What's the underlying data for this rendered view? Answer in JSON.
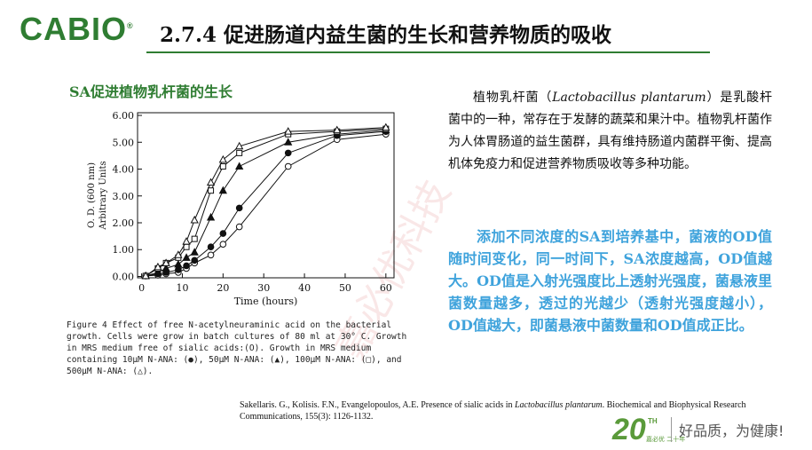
{
  "header": {
    "logo": "CABIO",
    "logo_mark": "®",
    "title": "2.7.4  促进肠道内益生菌的生长和营养物质的吸收"
  },
  "subtitle": "SA促进植物乳杆菌的生长",
  "chart_data": {
    "type": "line",
    "xlabel": "Time (hours)",
    "ylabel": [
      "O. D. (600 nm)",
      "Arbitrary Units"
    ],
    "x": [
      1,
      4,
      6,
      9,
      11,
      13,
      17,
      20,
      24,
      36,
      48,
      60
    ],
    "xlim": [
      -1,
      62
    ],
    "xticks": [
      0,
      10,
      20,
      30,
      40,
      50,
      60
    ],
    "ylim": [
      -0.05,
      6.1
    ],
    "yticks": [
      {
        "value": 0,
        "label": "0.00"
      },
      {
        "value": 1,
        "label": "1.00"
      },
      {
        "value": 2,
        "label": "2.00"
      },
      {
        "value": 3,
        "label": "3.00"
      },
      {
        "value": 4,
        "label": "4.00"
      },
      {
        "value": 5,
        "label": "5.00"
      },
      {
        "value": 6,
        "label": "6.00"
      }
    ],
    "series": [
      {
        "marker": "open-circle",
        "color": "#111111",
        "values": [
          0.02,
          0.05,
          0.1,
          0.15,
          0.3,
          0.5,
          0.8,
          1.2,
          1.85,
          4.1,
          5.1,
          5.3
        ]
      },
      {
        "marker": "filled-circle",
        "color": "#111111",
        "values": [
          0.02,
          0.1,
          0.15,
          0.25,
          0.4,
          0.6,
          1.1,
          1.6,
          2.55,
          4.6,
          5.25,
          5.4
        ]
      },
      {
        "marker": "filled-triangle",
        "color": "#111111",
        "values": [
          0.02,
          0.15,
          0.3,
          0.45,
          0.7,
          0.9,
          2.2,
          3.2,
          4.1,
          5.0,
          5.3,
          5.45
        ]
      },
      {
        "marker": "open-square",
        "color": "#111111",
        "values": [
          0.02,
          0.3,
          0.5,
          0.7,
          1.1,
          1.4,
          3.2,
          4.1,
          4.6,
          5.3,
          5.4,
          5.5
        ]
      },
      {
        "marker": "open-triangle",
        "color": "#111111",
        "values": [
          0.02,
          0.35,
          0.5,
          0.8,
          1.3,
          2.1,
          3.5,
          4.35,
          4.85,
          5.4,
          5.45,
          5.55
        ]
      }
    ],
    "caption": "Figure 4 Effect of free N-acetylneuraminic acid on the bacterial growth. Cells were grow in batch cultures of 80 ml at 30° C. Growth in MRS medium free of sialic acids:(O). Growth in MRS medium containing 10µM N-ANA: (●), 50µM N-ANA: (▲), 100µM N-ANA: (□), and 500µM N-ANA: (△)."
  },
  "paragraph1": [
    "植物乳杆菌（",
    "Lactobacillus plantarum",
    "）是乳酸杆菌中的一种，常存在于发酵的蔬菜和果汁中。植物乳杆菌作为人体胃肠道的益生菌群，具有维持肠道内菌群平衡、提高机体免疫力和促进营养物质吸收等多种功能。"
  ],
  "paragraph2": "添加不同浓度的SA到培养基中，菌液的OD值随时间变化，同一时间下，SA浓度越高，OD值越大。OD值是入射光强度比上透射光强度，菌悬液里菌数量越多，透过的光越少（透射光强度越小），OD值越大，即菌悬液中菌数量和OD值成正比。",
  "reference": [
    "Sakellaris. G., Kolisis. F.N., Evangelopoulos, A.E. Presence of sialic acids in ",
    "Lactobacillus plantarum",
    ". Biochemical and Biophysical Research Communications, 155(3): 1126-1132."
  ],
  "watermark": "嘉必优科技",
  "footer": {
    "badge": "20",
    "badge_suffix": "TH",
    "badge_caption": "嘉必优 二十年",
    "slogan": "好品质，为健康!"
  }
}
